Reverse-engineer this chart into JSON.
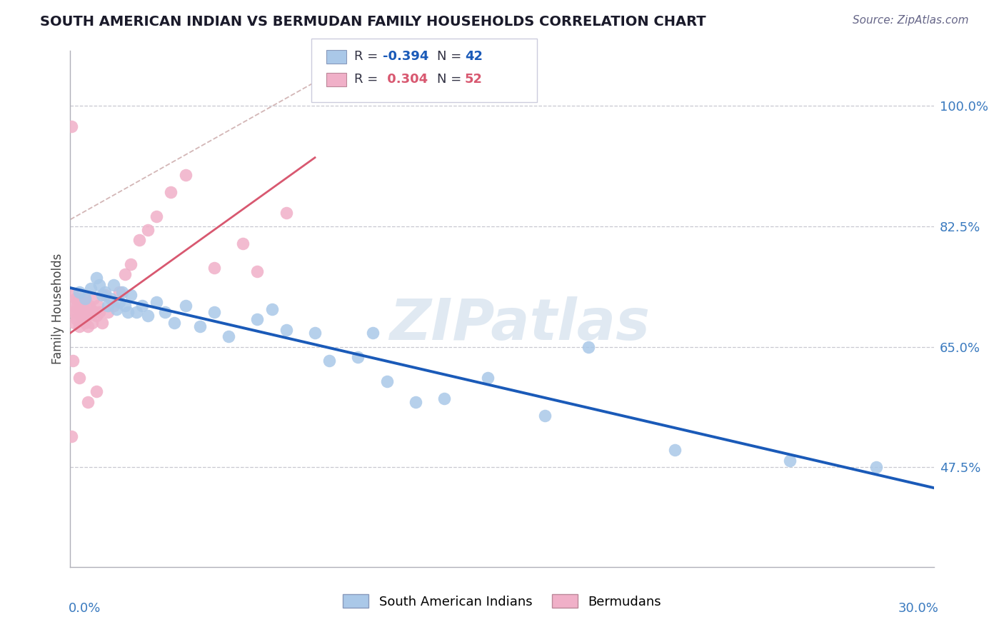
{
  "title": "SOUTH AMERICAN INDIAN VS BERMUDAN FAMILY HOUSEHOLDS CORRELATION CHART",
  "source": "Source: ZipAtlas.com",
  "ylabel": "Family Households",
  "y_ticks": [
    47.5,
    65.0,
    82.5,
    100.0
  ],
  "y_tick_labels": [
    "47.5%",
    "65.0%",
    "82.5%",
    "100.0%"
  ],
  "xlim": [
    0.0,
    30.0
  ],
  "ylim": [
    33.0,
    108.0
  ],
  "blue_R": "-0.394",
  "blue_N": "42",
  "pink_R": "0.304",
  "pink_N": "52",
  "legend_label_blue": "South American Indians",
  "legend_label_pink": "Bermudans",
  "blue_color": "#aac8e8",
  "pink_color": "#f0b0c8",
  "blue_line_color": "#1a5ab8",
  "pink_line_color": "#d85870",
  "diag_line_color": "#ccaaaa",
  "watermark": "ZIPatlas",
  "watermark_color": "#c8d8e8",
  "background_color": "#ffffff",
  "grid_color": "#c8c8d0",
  "blue_x": [
    0.3,
    0.5,
    0.7,
    0.9,
    1.0,
    1.1,
    1.2,
    1.3,
    1.4,
    1.5,
    1.6,
    1.7,
    1.8,
    1.9,
    2.0,
    2.1,
    2.3,
    2.5,
    2.7,
    3.0,
    3.3,
    3.6,
    4.0,
    4.5,
    5.0,
    5.5,
    6.5,
    7.0,
    7.5,
    8.5,
    9.0,
    10.0,
    10.5,
    11.0,
    12.0,
    13.0,
    14.5,
    16.5,
    18.0,
    21.0,
    25.0,
    28.0
  ],
  "blue_y": [
    73.0,
    72.0,
    73.5,
    75.0,
    74.0,
    72.5,
    73.0,
    71.0,
    72.0,
    74.0,
    70.5,
    71.5,
    73.0,
    71.0,
    70.0,
    72.5,
    70.0,
    71.0,
    69.5,
    71.5,
    70.0,
    68.5,
    71.0,
    68.0,
    70.0,
    66.5,
    69.0,
    70.5,
    67.5,
    67.0,
    63.0,
    63.5,
    67.0,
    60.0,
    57.0,
    57.5,
    60.5,
    55.0,
    65.0,
    50.0,
    48.5,
    47.5
  ],
  "pink_x": [
    0.05,
    0.08,
    0.1,
    0.12,
    0.15,
    0.18,
    0.2,
    0.22,
    0.25,
    0.28,
    0.3,
    0.32,
    0.35,
    0.38,
    0.4,
    0.42,
    0.45,
    0.48,
    0.5,
    0.52,
    0.55,
    0.58,
    0.6,
    0.65,
    0.7,
    0.75,
    0.8,
    0.85,
    0.9,
    0.95,
    1.0,
    1.1,
    1.2,
    1.3,
    1.5,
    1.7,
    1.9,
    2.1,
    2.4,
    2.7,
    3.0,
    3.5,
    4.0,
    5.0,
    6.0,
    6.5,
    7.5,
    0.05,
    0.1,
    0.3,
    0.6,
    0.9
  ],
  "pink_y": [
    97.0,
    70.0,
    72.5,
    71.0,
    68.5,
    70.0,
    72.0,
    69.0,
    71.0,
    70.5,
    68.0,
    72.0,
    69.5,
    71.0,
    70.0,
    69.0,
    71.5,
    70.0,
    68.5,
    72.0,
    70.0,
    69.5,
    68.0,
    71.0,
    70.5,
    68.5,
    72.0,
    70.0,
    69.5,
    71.0,
    70.0,
    68.5,
    72.5,
    70.0,
    71.0,
    73.0,
    75.5,
    77.0,
    80.5,
    82.0,
    84.0,
    87.5,
    90.0,
    76.5,
    80.0,
    76.0,
    84.5,
    52.0,
    63.0,
    60.5,
    57.0,
    58.5
  ]
}
